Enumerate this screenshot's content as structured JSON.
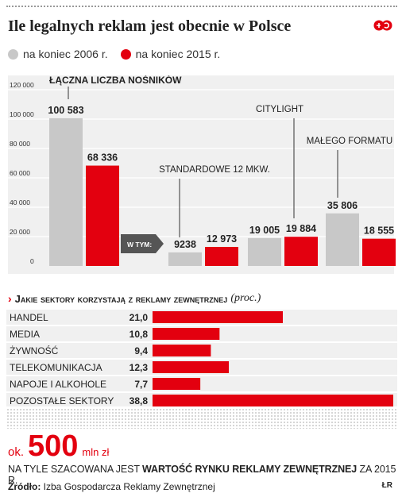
{
  "header": {
    "title": "Ile legalnych reklam jest obecnie w Polsce"
  },
  "legend": [
    {
      "label": "na koniec 2006 r.",
      "color": "#c8c8c8"
    },
    {
      "label": "na koniec 2015 r.",
      "color": "#e3000f"
    }
  ],
  "chart_data": [
    {
      "type": "bar",
      "ylim": [
        0,
        120000
      ],
      "y_ticks": [
        "0",
        "20 000",
        "40 000",
        "60 000",
        "80 000",
        "100 000",
        "120 000"
      ],
      "series": [
        {
          "name": "na koniec 2006 r.",
          "color": "#c8c8c8",
          "values": [
            100583,
            9238,
            19005,
            35806
          ]
        },
        {
          "name": "na koniec 2015 r.",
          "color": "#e3000f",
          "values": [
            68336,
            12973,
            19884,
            18555
          ]
        }
      ],
      "value_labels": [
        [
          "100 583",
          "9238",
          "19 005",
          "35 806"
        ],
        [
          "68 336",
          "12 973",
          "19 884",
          "18 555"
        ]
      ],
      "categories": [
        "ŁĄCZNA LICZBA NOŚNIKÓW",
        "STANDARDOWE 12 MKW.",
        "CITYLIGHT",
        "MAŁEGO FORMATU"
      ],
      "group_note": "W TYM:"
    },
    {
      "type": "bar",
      "orientation": "horizontal",
      "title": "Jakie sektory korzystają z reklamy zewnętrznej",
      "unit": "(proc.)",
      "categories": [
        "HANDEL",
        "MEDIA",
        "ŻYWNOŚĆ",
        "TELEKOMUNIKACJA",
        "NAPOJE I ALKOHOLE",
        "POZOSTAŁE SEKTORY"
      ],
      "values": [
        21.0,
        10.8,
        9.4,
        12.3,
        7.7,
        38.8
      ],
      "value_labels": [
        "21,0",
        "10,8",
        "9,4",
        "12,3",
        "7,7",
        "38,8"
      ],
      "color": "#e3000f",
      "xlim": [
        0,
        38.8
      ]
    }
  ],
  "market_value": {
    "prefix": "ok.",
    "number": "500",
    "unit": "mln zł",
    "caption_pre": "NA TYLE SZACOWANA JEST ",
    "caption_bold": "WARTOŚĆ RYNKU REKLAMY ZEWNĘTRZNEJ",
    "caption_post": " ZA 2015 R."
  },
  "footer": {
    "source_label": "Źródło:",
    "source_text": "Izba Gospodarcza Reklamy Zewnętrznej",
    "author": "ŁR"
  },
  "colors": {
    "accent": "#e3000f",
    "gray_bar": "#c8c8c8",
    "panel": "#f0f0f0",
    "tag": "#555555"
  }
}
